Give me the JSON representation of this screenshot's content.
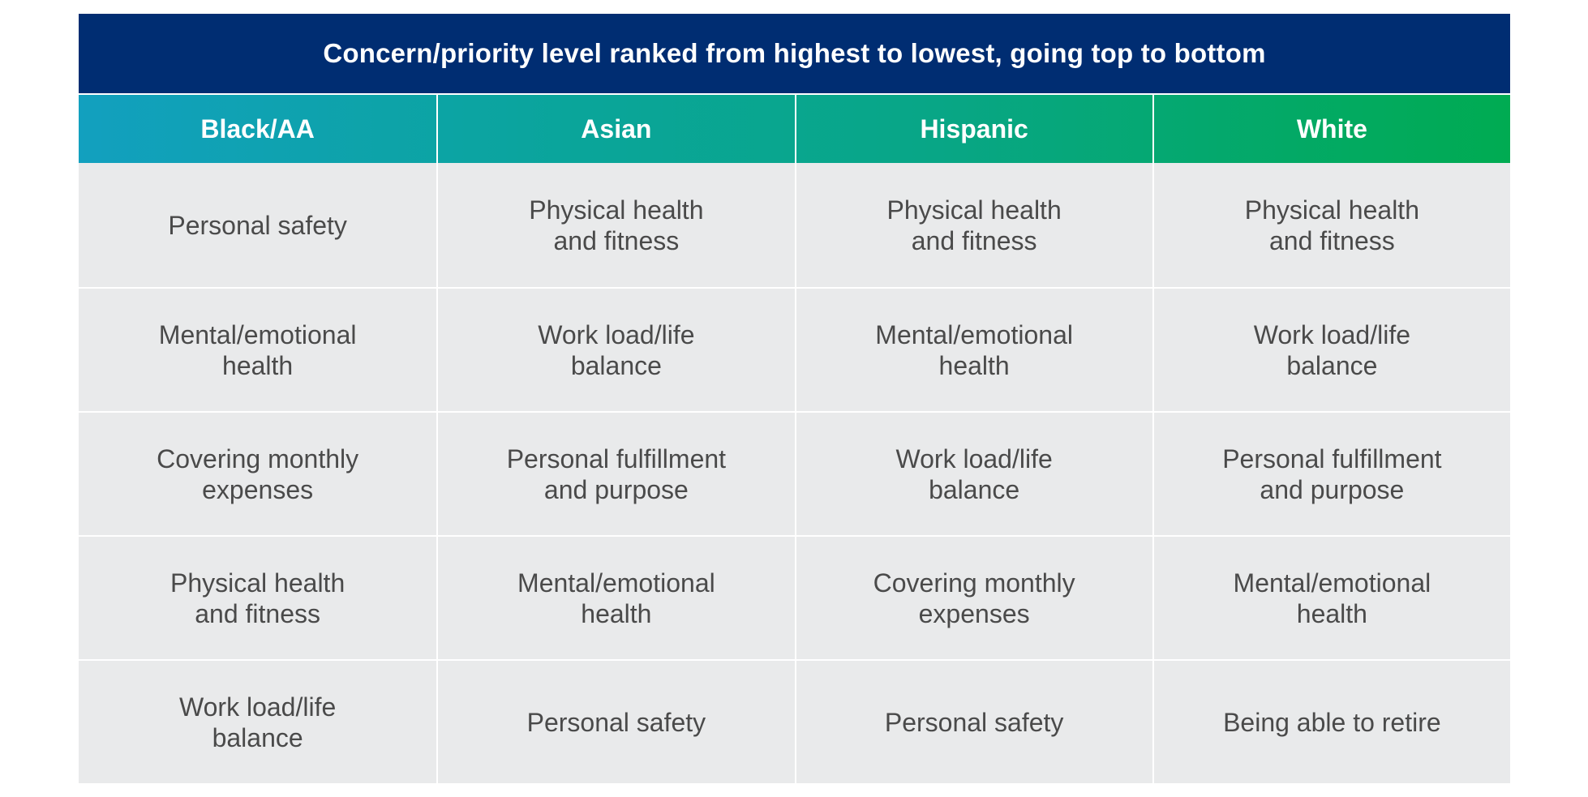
{
  "chart_data": {
    "type": "table",
    "title": "Concern/priority level ranked from highest to lowest, going top to bottom",
    "columns": [
      "Black/AA",
      "Asian",
      "Hispanic",
      "White"
    ],
    "rows": [
      [
        "Personal safety",
        "Physical health\nand fitness",
        "Physical health\nand fitness",
        "Physical health\nand fitness"
      ],
      [
        "Mental/emotional\nhealth",
        "Work load/life\nbalance",
        "Mental/emotional\nhealth",
        "Work load/life\nbalance"
      ],
      [
        "Covering monthly\nexpenses",
        "Personal fulfillment\nand purpose",
        "Work load/life\nbalance",
        "Personal fulfillment\nand purpose"
      ],
      [
        "Physical health\nand fitness",
        "Mental/emotional\nhealth",
        "Covering monthly\nexpenses",
        "Mental/emotional\nhealth"
      ],
      [
        "Work load/life\nbalance",
        "Personal safety",
        "Personal safety",
        "Being able to retire"
      ]
    ]
  },
  "colors": {
    "title_bg": "#002d72",
    "header_gradient_start": "#12a0bf",
    "header_gradient_end": "#00ab52",
    "cell_bg": "#e9eaeb",
    "cell_text": "#4a4a4a"
  }
}
